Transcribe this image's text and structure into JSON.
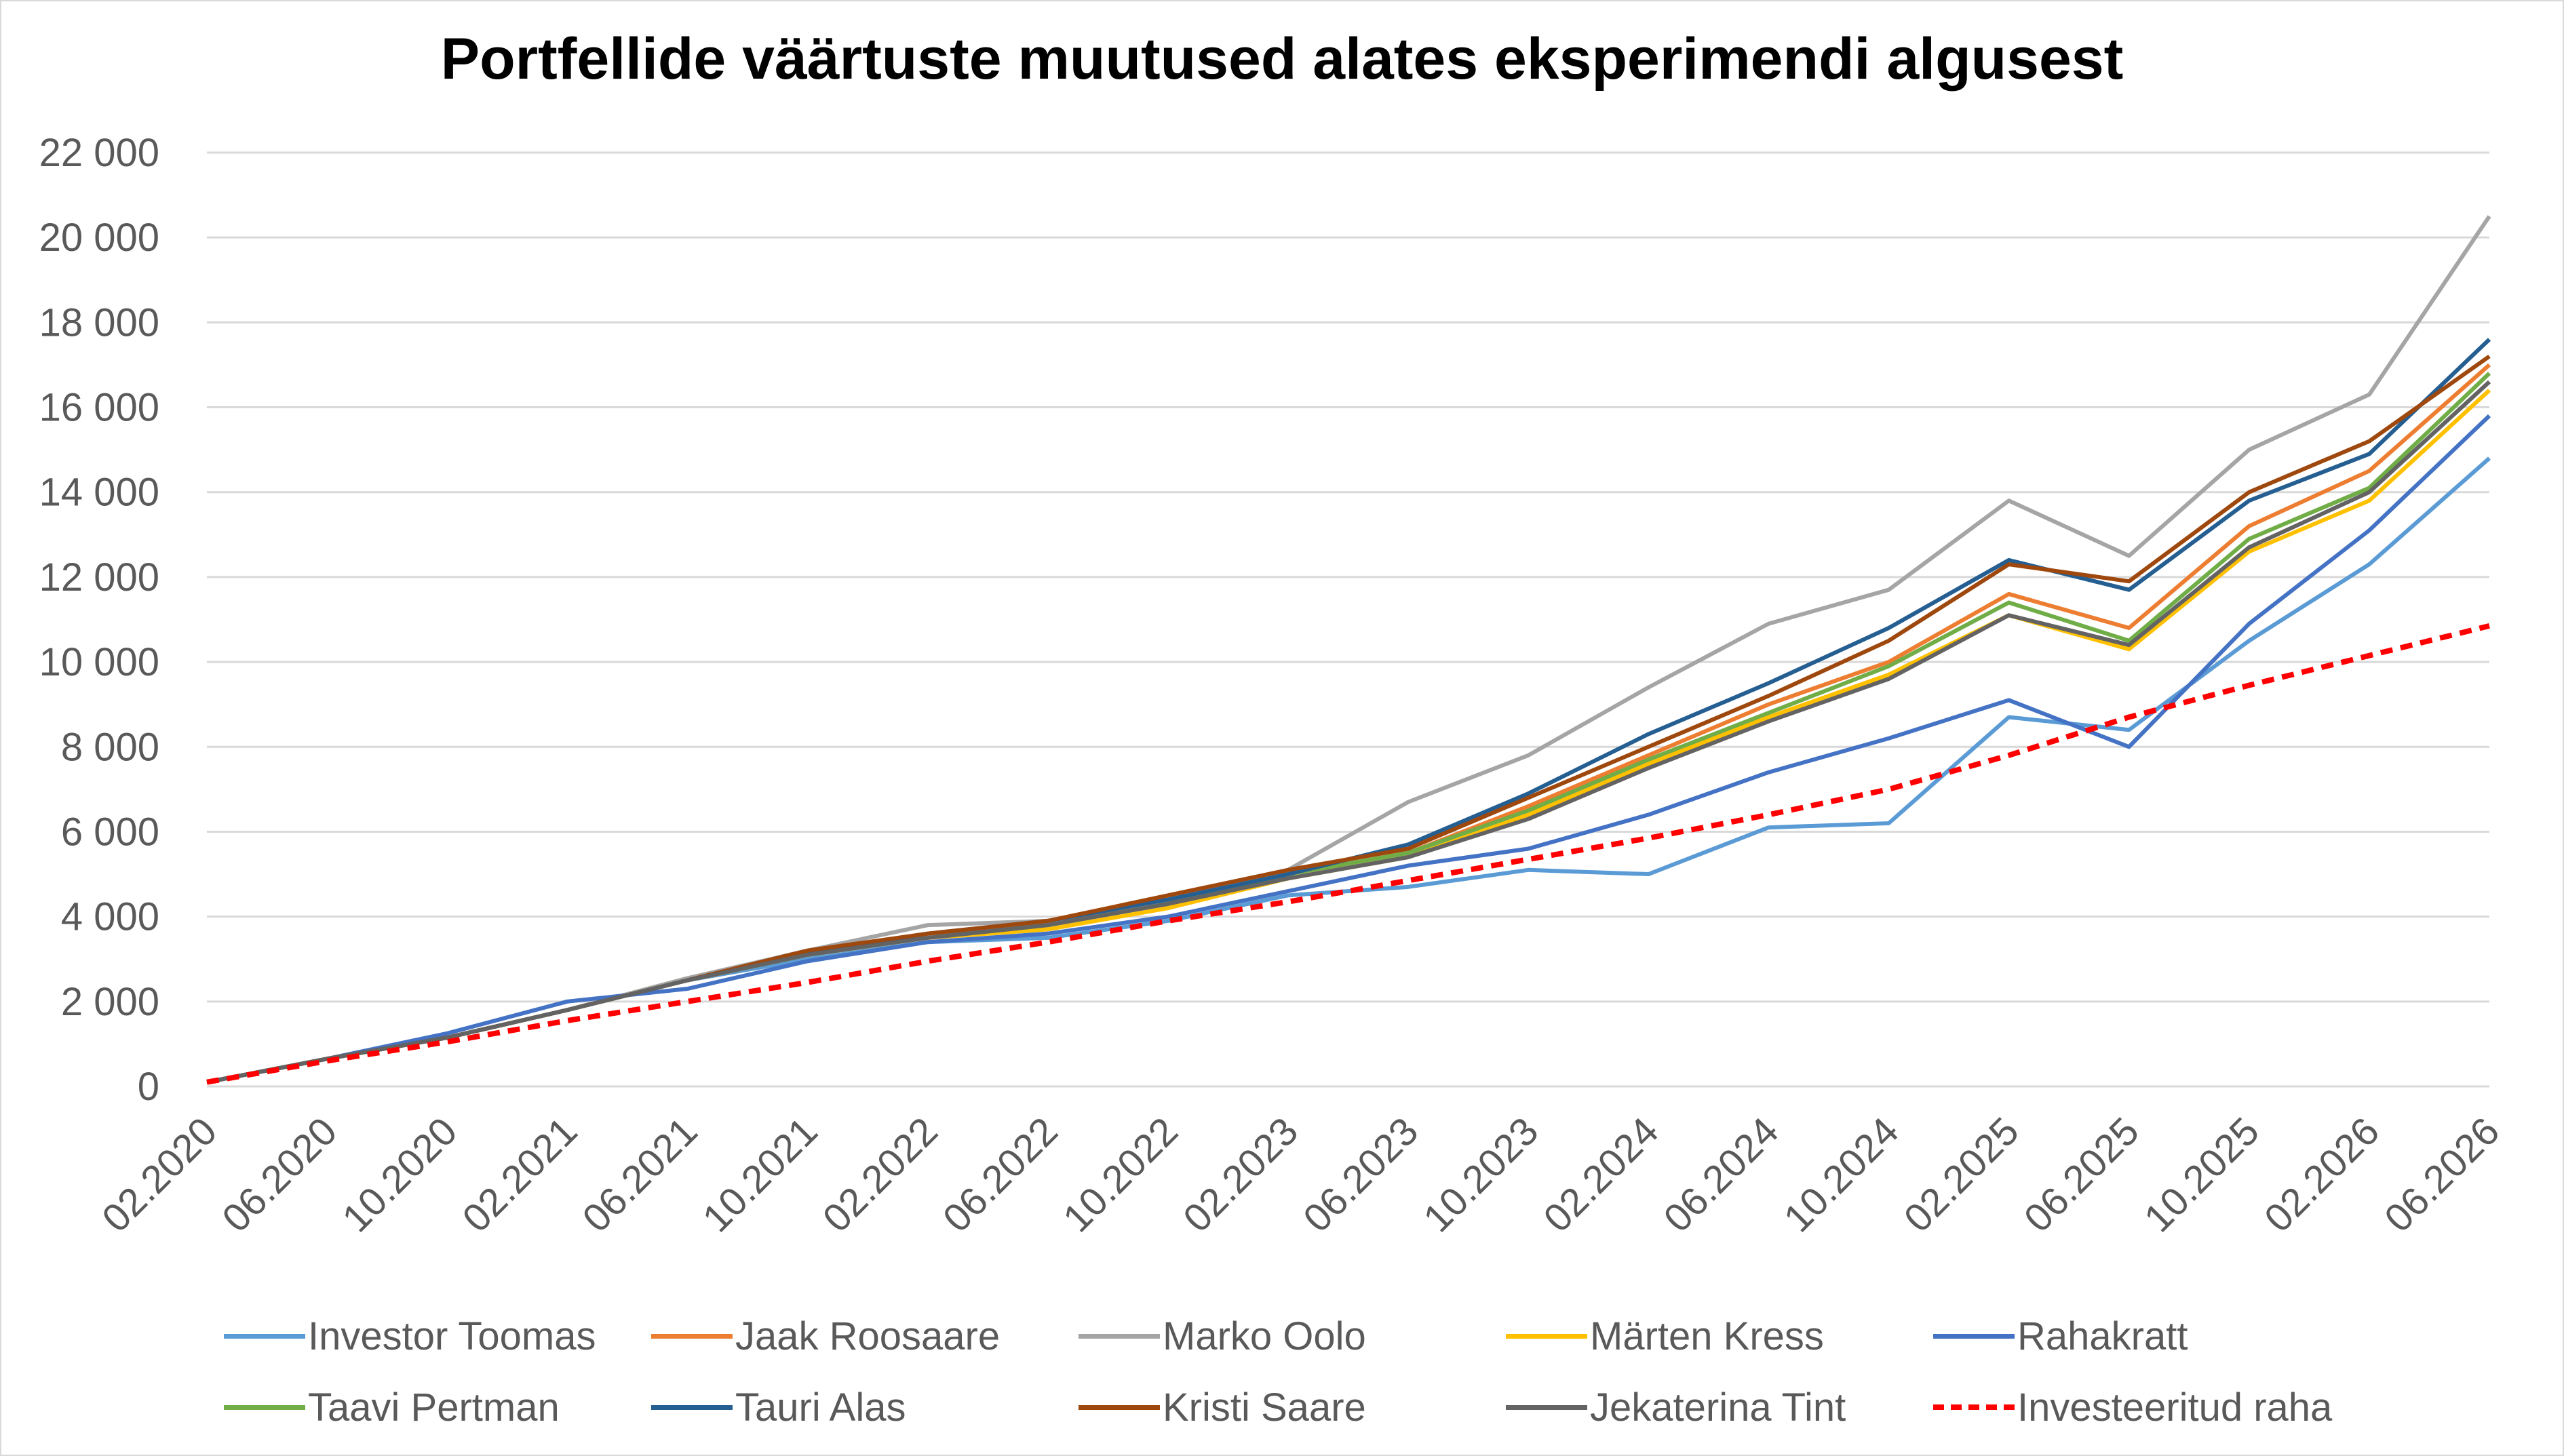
{
  "chart_data": {
    "type": "line",
    "title": "Portfellide väärtuste muutused alates eksperimendi algusest",
    "xlabel": "",
    "ylabel": "",
    "ylim": [
      0,
      22000
    ],
    "y_ticks": [
      "0",
      "2 000",
      "4 000",
      "6 000",
      "8 000",
      "10 000",
      "12 000",
      "14 000",
      "16 000",
      "18 000",
      "20 000",
      "22 000"
    ],
    "x_ticks": [
      "02.2020",
      "06.2020",
      "10.2020",
      "02.2021",
      "06.2021",
      "10.2021",
      "02.2022",
      "06.2022",
      "10.2022",
      "02.2023",
      "06.2023",
      "10.2023",
      "02.2024",
      "06.2024",
      "10.2024",
      "02.2025",
      "06.2025",
      "10.2025",
      "02.2026",
      "06.2026"
    ],
    "grid": true,
    "legend_position": "bottom",
    "x": [
      "02.2020",
      "06.2020",
      "10.2020",
      "02.2021",
      "06.2021",
      "10.2021",
      "02.2022",
      "06.2022",
      "10.2022",
      "02.2023",
      "06.2023",
      "10.2023",
      "02.2024",
      "06.2024",
      "10.2024",
      "02.2025",
      "06.2025",
      "10.2025",
      "02.2026",
      "06.2026"
    ],
    "series": [
      {
        "name": "Investor Toomas",
        "color": "#5B9BD5",
        "dashed": false,
        "values": [
          100,
          650,
          1150,
          1800,
          2500,
          3000,
          3400,
          3500,
          3900,
          4500,
          4700,
          5100,
          5000,
          6100,
          6200,
          8700,
          8400,
          10500,
          12300,
          14800
        ]
      },
      {
        "name": "Jaak Roosaare",
        "color": "#ED7D31",
        "dashed": false,
        "values": [
          100,
          650,
          1150,
          1800,
          2500,
          3100,
          3600,
          3800,
          4300,
          5000,
          5500,
          6600,
          7800,
          9000,
          10000,
          11600,
          10800,
          13200,
          14500,
          17000
        ]
      },
      {
        "name": "Marko Oolo",
        "color": "#A5A5A5",
        "dashed": false,
        "values": [
          100,
          650,
          1150,
          1800,
          2550,
          3200,
          3800,
          3900,
          4400,
          5100,
          6700,
          7800,
          9400,
          10900,
          11700,
          13800,
          12500,
          15000,
          16300,
          20500
        ]
      },
      {
        "name": "Märten Kress",
        "color": "#FFC000",
        "dashed": false,
        "values": [
          100,
          650,
          1150,
          1800,
          2500,
          3100,
          3500,
          3700,
          4200,
          4900,
          5400,
          6400,
          7600,
          8700,
          9700,
          11100,
          10300,
          12600,
          13800,
          16400
        ]
      },
      {
        "name": "Rahakratt",
        "color": "#4472C4",
        "dashed": false,
        "values": [
          100,
          650,
          1250,
          2000,
          2300,
          2950,
          3400,
          3600,
          4000,
          4600,
          5200,
          5600,
          6400,
          7400,
          8200,
          9100,
          8000,
          10900,
          13100,
          15800
        ]
      },
      {
        "name": "Taavi Pertman",
        "color": "#70AD47",
        "dashed": false,
        "values": [
          100,
          650,
          1150,
          1800,
          2500,
          3100,
          3500,
          3800,
          4300,
          5000,
          5500,
          6500,
          7700,
          8800,
          9900,
          11400,
          10500,
          12900,
          14100,
          16800
        ]
      },
      {
        "name": "Tauri Alas",
        "color": "#255E91",
        "dashed": false,
        "values": [
          100,
          650,
          1150,
          1800,
          2500,
          3150,
          3600,
          3900,
          4400,
          5000,
          5700,
          6900,
          8300,
          9500,
          10800,
          12400,
          11700,
          13800,
          14900,
          17600
        ]
      },
      {
        "name": "Kristi Saare",
        "color": "#9E480E",
        "dashed": false,
        "values": [
          100,
          650,
          1150,
          1800,
          2500,
          3200,
          3600,
          3900,
          4500,
          5100,
          5600,
          6800,
          8000,
          9200,
          10500,
          12300,
          11900,
          14000,
          15200,
          17200
        ]
      },
      {
        "name": "Jekaterina Tint",
        "color": "#636363",
        "dashed": false,
        "values": [
          100,
          650,
          1150,
          1800,
          2500,
          3100,
          3500,
          3800,
          4300,
          4900,
          5400,
          6300,
          7500,
          8600,
          9600,
          11100,
          10400,
          12700,
          14000,
          16600
        ]
      },
      {
        "name": "Investeeritud raha",
        "color": "#FF0000",
        "dashed": true,
        "values": [
          100,
          600,
          1050,
          1550,
          2000,
          2450,
          2950,
          3400,
          3900,
          4350,
          4850,
          5350,
          5850,
          6400,
          7000,
          7800,
          8700,
          9450,
          10150,
          10850
        ]
      }
    ]
  }
}
